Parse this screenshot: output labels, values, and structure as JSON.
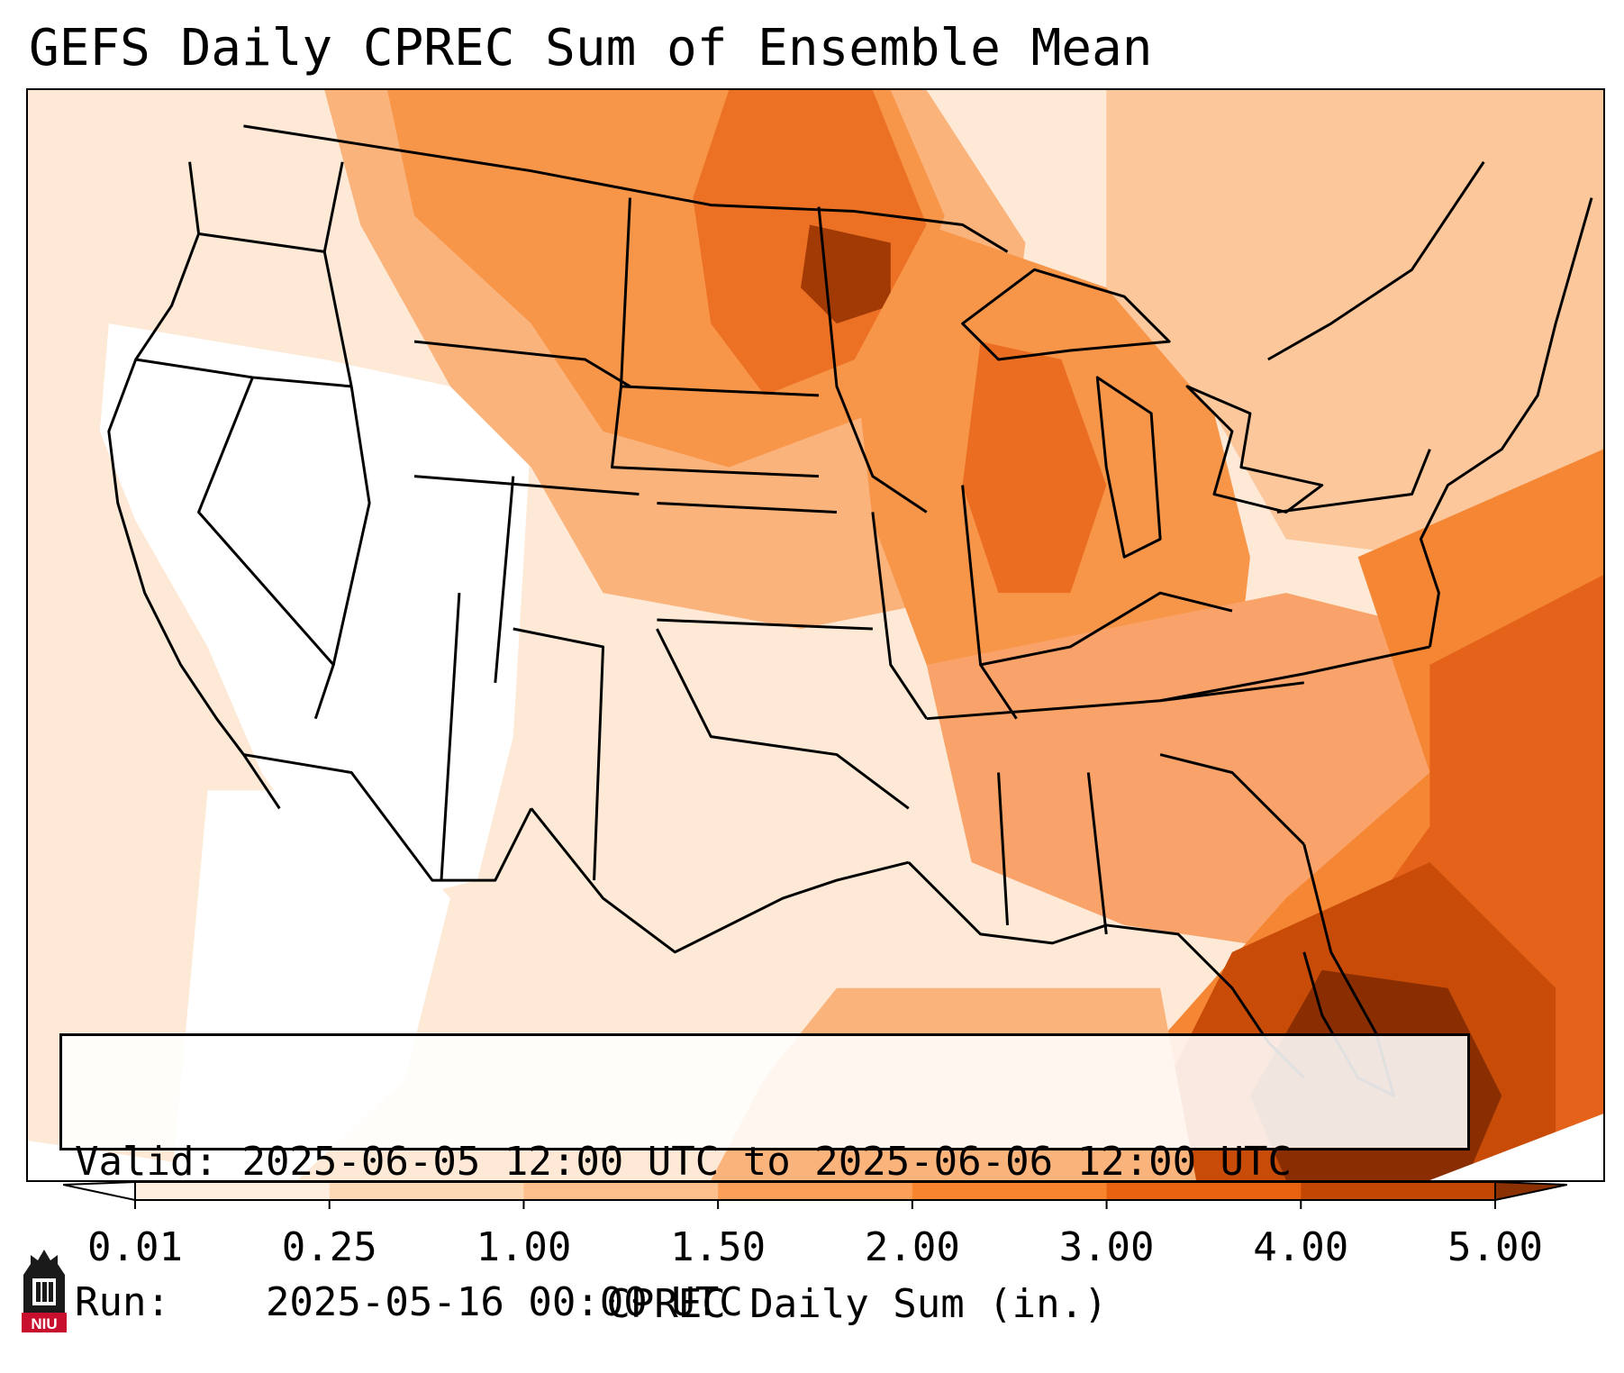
{
  "title": "GEFS Daily CPREC Sum of Ensemble Mean",
  "info": {
    "valid_label": "Valid:",
    "valid_value": "2025-06-05 12:00 UTC to 2025-06-06 12:00 UTC",
    "run_label": "Run:",
    "run_value": "2025-05-16 00:00 UTC"
  },
  "colorbar": {
    "label": "CPREC Daily Sum (in.)",
    "ticks": [
      "0.01",
      "0.25",
      "1.00",
      "1.50",
      "2.00",
      "3.00",
      "4.00",
      "5.00"
    ],
    "colors": [
      "#fdeedf",
      "#fdd9b5",
      "#fdbf8c",
      "#fd9f58",
      "#f8842e",
      "#e9620f",
      "#c24702"
    ],
    "under_color": "#ffffff",
    "over_color": "#8a3001"
  },
  "logo": {
    "text": "NIU",
    "colors": {
      "tower": "#1a1a1a",
      "banner": "#c8102e"
    }
  },
  "colors": {
    "light_fill": "#fde7d2",
    "medium_fill": "#fdb27a",
    "orange_fill": "#f58634",
    "dark_fill": "#d45510",
    "darkest_fill": "#8a2e02",
    "border": "#000000"
  }
}
